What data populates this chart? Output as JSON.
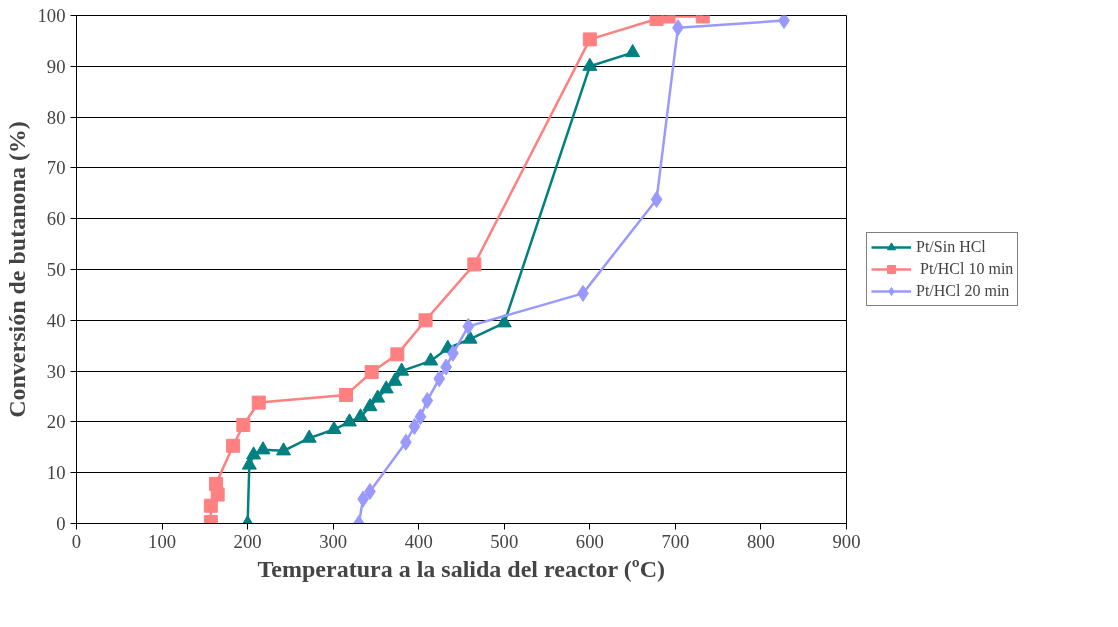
{
  "chart_data": {
    "type": "line",
    "xlabel": "Temperatura a la salida del reactor (ºC)",
    "ylabel": "Conversión de butanona (%)",
    "xlim": [
      0,
      900
    ],
    "xticks": [
      0,
      100,
      200,
      300,
      400,
      500,
      600,
      700,
      800,
      900
    ],
    "ylim": [
      0,
      100
    ],
    "yticks": [
      0,
      10,
      20,
      30,
      40,
      50,
      60,
      70,
      80,
      90,
      100
    ],
    "grid": "y",
    "legend": "right",
    "line_style": "solid",
    "series": [
      {
        "name": "Pt/Sin HCl",
        "color": "#008080",
        "marker": "triangle",
        "x": [
          200,
          202,
          207,
          218,
          242,
          272,
          301,
          319,
          332,
          343,
          352,
          362,
          372,
          380,
          414,
          434,
          460,
          500,
          600,
          650
        ],
        "values": [
          0,
          11.5,
          13.5,
          14.5,
          14.3,
          16.8,
          18.5,
          20,
          21,
          23,
          24.7,
          26.5,
          28,
          30,
          32,
          34.5,
          36.3,
          39.5,
          90,
          92.7
        ]
      },
      {
        "name": " Pt/HCl 10 min",
        "color": "#ff8080",
        "marker": "square",
        "x": [
          157,
          157,
          165,
          163,
          183,
          195,
          213,
          315,
          345,
          375,
          408,
          465,
          600,
          678,
          692,
          732
        ],
        "values": [
          0.3,
          3.5,
          5.7,
          7.8,
          15.3,
          19.4,
          23.8,
          25.3,
          29.8,
          33.3,
          40,
          51,
          95.3,
          99.3,
          99.8,
          99.8
        ]
      },
      {
        "name": "Pt/HCl 20 min",
        "color": "#9999ff",
        "marker": "diamond",
        "x": [
          330,
          335,
          343,
          385,
          395,
          402,
          410,
          424,
          432,
          440,
          458,
          592,
          678,
          703,
          827
        ],
        "values": [
          0,
          4.8,
          6.3,
          16,
          19.1,
          21,
          24.2,
          28.5,
          30.8,
          33.5,
          38.8,
          45.3,
          63.8,
          97.6,
          99
        ]
      }
    ]
  }
}
